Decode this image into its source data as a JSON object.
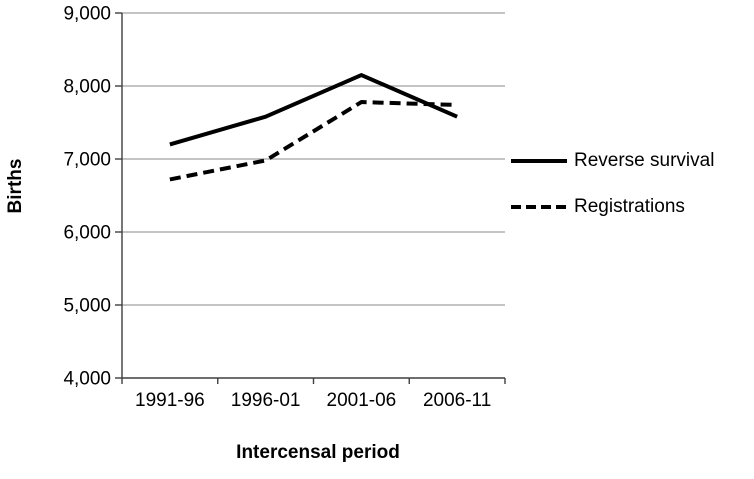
{
  "chart_data": {
    "type": "line",
    "title": "",
    "xlabel": "Intercensal period",
    "ylabel": "Births",
    "categories": [
      "1991-96",
      "1996-01",
      "2001-06",
      "2006-11"
    ],
    "series": [
      {
        "name": "Reverse survival",
        "style": "solid",
        "values": [
          7200,
          7580,
          8150,
          7580
        ]
      },
      {
        "name": "Registrations",
        "style": "dashed",
        "values": [
          6720,
          6980,
          7780,
          7740
        ]
      }
    ],
    "ylim": [
      4000,
      9000
    ],
    "y_ticks": [
      4000,
      5000,
      6000,
      7000,
      8000,
      9000
    ],
    "y_tick_labels": [
      "4,000",
      "5,000",
      "6,000",
      "7,000",
      "8,000",
      "9,000"
    ],
    "grid": "horizontal",
    "legend_position": "right",
    "line_color": "#000000",
    "grid_color": "#a0a0a0",
    "axis_color": "#3f3f3f"
  }
}
